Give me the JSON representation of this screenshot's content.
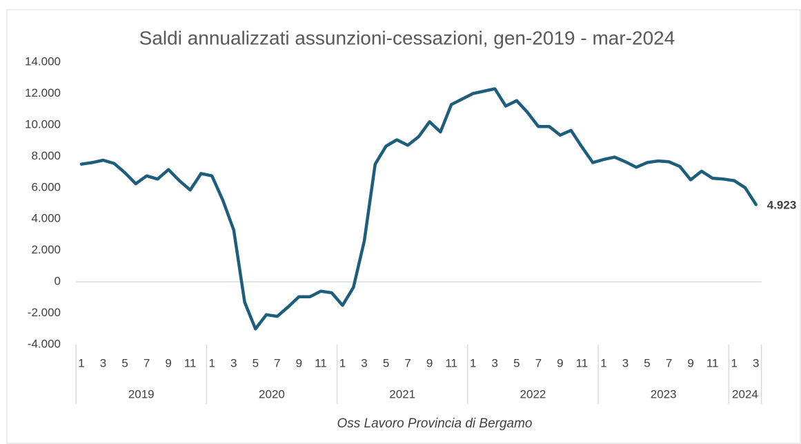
{
  "chart_data": {
    "type": "line",
    "title": "Saldi annualizzati assunzioni-cessazioni, gen-2019 - mar-2024",
    "x_label": "Oss Lavoro Provincia di Bergamo",
    "categories": [
      "1",
      null,
      "3",
      null,
      "5",
      null,
      "7",
      null,
      "9",
      null,
      "11",
      null,
      "1",
      null,
      "3",
      null,
      "5",
      null,
      "7",
      null,
      "9",
      null,
      "11",
      null,
      "1",
      null,
      "3",
      null,
      "5",
      null,
      "7",
      null,
      "9",
      null,
      "11",
      null,
      "1",
      null,
      "3",
      null,
      "5",
      null,
      "7",
      null,
      "9",
      null,
      "11",
      null,
      "1",
      null,
      "3",
      null,
      "5",
      null,
      "7",
      null,
      "9",
      null,
      "11",
      null,
      "1",
      null,
      "3"
    ],
    "category_groups": [
      "2019",
      "2020",
      "2021",
      "2022",
      "2023",
      "2024"
    ],
    "series": [
      {
        "name": "Saldi annualizzati",
        "color": "#1c5e7c",
        "values": [
          7500,
          7600,
          7750,
          7550,
          6950,
          6250,
          6750,
          6550,
          7150,
          6450,
          5850,
          6900,
          6750,
          5200,
          3300,
          -1300,
          -3000,
          -2100,
          -2200,
          -1600,
          -950,
          -950,
          -600,
          -700,
          -1500,
          -350,
          2600,
          7500,
          8650,
          9050,
          8700,
          9250,
          10200,
          9550,
          11300,
          11650,
          12000,
          12150,
          12300,
          11200,
          11550,
          10800,
          9900,
          9900,
          9350,
          9650,
          8600,
          7600,
          7800,
          7950,
          7650,
          7300,
          7600,
          7700,
          7650,
          7350,
          6500,
          7050,
          6600,
          6550,
          6450,
          6000,
          4923
        ],
        "value_labels": [
          null,
          null,
          null,
          null,
          null,
          null,
          null,
          null,
          null,
          null,
          null,
          null,
          null,
          null,
          null,
          null,
          null,
          null,
          null,
          null,
          null,
          null,
          null,
          null,
          null,
          null,
          null,
          null,
          null,
          null,
          null,
          null,
          null,
          null,
          null,
          null,
          null,
          null,
          null,
          null,
          null,
          null,
          null,
          null,
          null,
          null,
          null,
          null,
          null,
          null,
          null,
          null,
          null,
          null,
          null,
          null,
          null,
          null,
          null,
          null,
          null,
          null,
          "4.923"
        ]
      }
    ],
    "ylim": [
      -4000,
      14000
    ],
    "yticks": [
      {
        "value": -4000,
        "label": "-4.000"
      },
      {
        "value": -2000,
        "label": "-2.000"
      },
      0,
      {
        "value": 2000,
        "label": "2.000"
      },
      {
        "value": 4000,
        "label": "4.000"
      },
      {
        "value": 6000,
        "label": "6.000"
      },
      {
        "value": 8000,
        "label": "8.000"
      },
      {
        "value": 10000,
        "label": "10.000"
      },
      {
        "value": 12000,
        "label": "12.000"
      },
      {
        "value": 14000,
        "label": "14.000"
      }
    ],
    "grid": false
  }
}
